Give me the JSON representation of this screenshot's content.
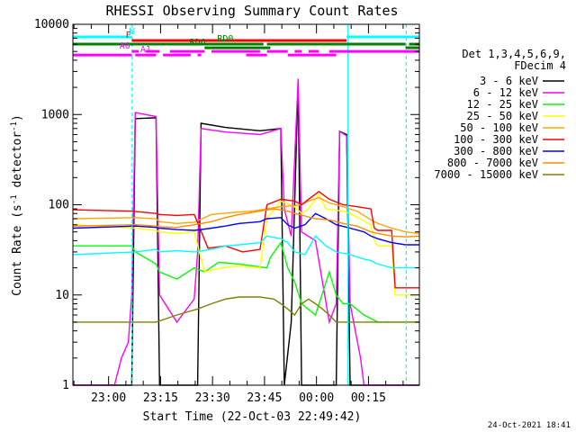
{
  "chart_data": {
    "type": "line",
    "title": "RHESSI Observing Summary Count Rates",
    "xlabel": "Start Time (22-Oct-03 22:49:42)",
    "ylabel_main": "Count Rate (s",
    "ylabel_sup1": "-1",
    "ylabel_mid": " detector",
    "ylabel_sup2": "-1",
    "ylabel_end": ")",
    "yscale": "log",
    "ylim": [
      1,
      10000
    ],
    "xlim_minutes": [
      0,
      100
    ],
    "yticks": [
      {
        "value": 1,
        "label": "1"
      },
      {
        "value": 10,
        "label": "10"
      },
      {
        "value": 100,
        "label": "100"
      },
      {
        "value": 1000,
        "label": "1000"
      },
      {
        "value": 10000,
        "label": "10000"
      }
    ],
    "xticks": [
      {
        "minute": 10.3,
        "label": "23:00"
      },
      {
        "minute": 25.3,
        "label": "23:15"
      },
      {
        "minute": 40.3,
        "label": "23:30"
      },
      {
        "minute": 55.3,
        "label": "23:45"
      },
      {
        "minute": 70.3,
        "label": "00:00"
      },
      {
        "minute": 85.3,
        "label": "00:15"
      }
    ],
    "legend_position": "right",
    "legend_header": [
      "Det 1,3,4,5,6,9,",
      "FDecim 4"
    ],
    "series": [
      {
        "name": "3 - 6 keV",
        "color": "#000000",
        "points": [
          [
            0,
            1
          ],
          [
            17,
            1
          ],
          [
            18,
            900
          ],
          [
            24,
            920
          ],
          [
            25,
            1
          ],
          [
            36,
            1
          ],
          [
            37,
            800
          ],
          [
            44,
            720
          ],
          [
            49,
            690
          ],
          [
            54,
            660
          ],
          [
            60,
            700
          ],
          [
            61,
            1
          ],
          [
            63,
            5
          ],
          [
            65,
            2300
          ],
          [
            66,
            1
          ],
          [
            76,
            1
          ],
          [
            77,
            650
          ],
          [
            79,
            600
          ],
          [
            80,
            1
          ],
          [
            100,
            1
          ]
        ]
      },
      {
        "name": "6 - 12 keV",
        "color": "#ff00ff",
        "points": [
          [
            0,
            1
          ],
          [
            12,
            1
          ],
          [
            14,
            2
          ],
          [
            16,
            3
          ],
          [
            17,
            10
          ],
          [
            18,
            1050
          ],
          [
            24,
            950
          ],
          [
            25,
            10
          ],
          [
            30,
            5
          ],
          [
            35,
            9
          ],
          [
            36,
            30
          ],
          [
            37,
            700
          ],
          [
            44,
            640
          ],
          [
            49,
            620
          ],
          [
            54,
            600
          ],
          [
            60,
            700
          ],
          [
            61,
            90
          ],
          [
            63,
            45
          ],
          [
            65,
            2500
          ],
          [
            66,
            50
          ],
          [
            70,
            40
          ],
          [
            74,
            5
          ],
          [
            76,
            8
          ],
          [
            77,
            650
          ],
          [
            79,
            580
          ],
          [
            80,
            8
          ],
          [
            83,
            2
          ],
          [
            84,
            1
          ],
          [
            100,
            1
          ]
        ]
      },
      {
        "name": "12 - 25 keV",
        "color": "#00ff00",
        "points": [
          [
            0,
            35
          ],
          [
            17,
            35
          ],
          [
            18,
            30
          ],
          [
            24,
            22
          ],
          [
            25,
            18
          ],
          [
            30,
            15
          ],
          [
            35,
            20
          ],
          [
            38,
            18
          ],
          [
            42,
            23
          ],
          [
            48,
            22
          ],
          [
            56,
            20
          ],
          [
            57,
            26
          ],
          [
            60,
            38
          ],
          [
            62,
            20
          ],
          [
            64,
            14
          ],
          [
            66,
            8
          ],
          [
            70,
            6
          ],
          [
            74,
            18
          ],
          [
            76,
            10
          ],
          [
            78,
            8
          ],
          [
            80,
            8
          ],
          [
            84,
            6
          ],
          [
            88,
            5
          ],
          [
            92,
            5
          ],
          [
            100,
            5
          ]
        ]
      },
      {
        "name": "25 - 50 keV",
        "color": "#ffff00",
        "points": [
          [
            0,
            60
          ],
          [
            18,
            55
          ],
          [
            24,
            52
          ],
          [
            25,
            50
          ],
          [
            30,
            48
          ],
          [
            35,
            50
          ],
          [
            38,
            18
          ],
          [
            43,
            20
          ],
          [
            48,
            21
          ],
          [
            54,
            20
          ],
          [
            56,
            70
          ],
          [
            60,
            110
          ],
          [
            64,
            95
          ],
          [
            66,
            80
          ],
          [
            68,
            90
          ],
          [
            71,
            130
          ],
          [
            73,
            90
          ],
          [
            78,
            85
          ],
          [
            80,
            80
          ],
          [
            86,
            60
          ],
          [
            87,
            40
          ],
          [
            88,
            35
          ],
          [
            92,
            35
          ],
          [
            93,
            10
          ],
          [
            100,
            10
          ]
        ]
      },
      {
        "name": "50 - 100 keV",
        "color": "#ffa500",
        "points": [
          [
            0,
            70
          ],
          [
            18,
            72
          ],
          [
            24,
            70
          ],
          [
            25,
            65
          ],
          [
            30,
            62
          ],
          [
            35,
            64
          ],
          [
            40,
            78
          ],
          [
            46,
            82
          ],
          [
            52,
            85
          ],
          [
            56,
            90
          ],
          [
            60,
            95
          ],
          [
            64,
            98
          ],
          [
            66,
            100
          ],
          [
            68,
            110
          ],
          [
            71,
            120
          ],
          [
            74,
            105
          ],
          [
            78,
            95
          ],
          [
            82,
            85
          ],
          [
            86,
            68
          ],
          [
            88,
            62
          ],
          [
            92,
            55
          ],
          [
            96,
            50
          ],
          [
            100,
            48
          ]
        ]
      },
      {
        "name": "100 - 300 keV",
        "color": "#ff0000",
        "points": [
          [
            0,
            88
          ],
          [
            17,
            85
          ],
          [
            24,
            80
          ],
          [
            25,
            78
          ],
          [
            30,
            76
          ],
          [
            35,
            78
          ],
          [
            39,
            33
          ],
          [
            44,
            35
          ],
          [
            49,
            30
          ],
          [
            54,
            32
          ],
          [
            56,
            100
          ],
          [
            60,
            115
          ],
          [
            64,
            110
          ],
          [
            66,
            100
          ],
          [
            68,
            115
          ],
          [
            71,
            140
          ],
          [
            74,
            115
          ],
          [
            78,
            100
          ],
          [
            82,
            95
          ],
          [
            86,
            90
          ],
          [
            87,
            55
          ],
          [
            88,
            52
          ],
          [
            92,
            52
          ],
          [
            93,
            12
          ],
          [
            100,
            12
          ]
        ]
      },
      {
        "name": "300 - 800 keV",
        "color": "#0000ff",
        "points": [
          [
            0,
            55
          ],
          [
            18,
            58
          ],
          [
            24,
            56
          ],
          [
            25,
            55
          ],
          [
            30,
            53
          ],
          [
            35,
            52
          ],
          [
            40,
            55
          ],
          [
            44,
            58
          ],
          [
            48,
            62
          ],
          [
            54,
            65
          ],
          [
            56,
            70
          ],
          [
            60,
            72
          ],
          [
            62,
            60
          ],
          [
            64,
            55
          ],
          [
            67,
            60
          ],
          [
            70,
            80
          ],
          [
            73,
            70
          ],
          [
            76,
            60
          ],
          [
            80,
            55
          ],
          [
            84,
            50
          ],
          [
            86,
            45
          ],
          [
            88,
            42
          ],
          [
            92,
            38
          ],
          [
            96,
            36
          ],
          [
            100,
            36
          ]
        ]
      },
      {
        "name": "800 - 7000 keV",
        "color": "#ff8c00",
        "points": [
          [
            0,
            58
          ],
          [
            18,
            60
          ],
          [
            24,
            58
          ],
          [
            25,
            57
          ],
          [
            30,
            56
          ],
          [
            35,
            60
          ],
          [
            40,
            65
          ],
          [
            44,
            72
          ],
          [
            48,
            78
          ],
          [
            54,
            85
          ],
          [
            58,
            90
          ],
          [
            62,
            85
          ],
          [
            64,
            80
          ],
          [
            67,
            75
          ],
          [
            70,
            70
          ],
          [
            74,
            68
          ],
          [
            78,
            62
          ],
          [
            82,
            58
          ],
          [
            86,
            50
          ],
          [
            88,
            48
          ],
          [
            92,
            45
          ],
          [
            96,
            44
          ],
          [
            100,
            45
          ]
        ]
      },
      {
        "name": "7000 - 15000 keV",
        "color": "#808000",
        "points": [
          [
            0,
            5
          ],
          [
            10,
            5
          ],
          [
            16,
            5
          ],
          [
            18,
            5
          ],
          [
            24,
            5
          ],
          [
            30,
            6
          ],
          [
            36,
            7
          ],
          [
            40,
            8
          ],
          [
            44,
            9
          ],
          [
            48,
            9.5
          ],
          [
            54,
            9.5
          ],
          [
            58,
            9
          ],
          [
            60,
            8
          ],
          [
            62,
            7
          ],
          [
            64,
            6
          ],
          [
            66,
            8
          ],
          [
            68,
            9
          ],
          [
            70,
            8
          ],
          [
            72,
            7
          ],
          [
            74,
            6
          ],
          [
            76,
            5
          ],
          [
            80,
            5
          ],
          [
            84,
            5
          ],
          [
            88,
            5
          ],
          [
            92,
            5
          ],
          [
            96,
            5
          ],
          [
            100,
            5
          ]
        ]
      },
      {
        "name": "",
        "color": "#00ffff",
        "points": [
          [
            0,
            28
          ],
          [
            18,
            30
          ],
          [
            24,
            32
          ],
          [
            25,
            30
          ],
          [
            30,
            31
          ],
          [
            35,
            30
          ],
          [
            40,
            32
          ],
          [
            44,
            35
          ],
          [
            48,
            36
          ],
          [
            54,
            38
          ],
          [
            56,
            45
          ],
          [
            60,
            42
          ],
          [
            62,
            38
          ],
          [
            64,
            30
          ],
          [
            67,
            28
          ],
          [
            70,
            45
          ],
          [
            73,
            35
          ],
          [
            76,
            30
          ],
          [
            80,
            28
          ],
          [
            84,
            25
          ],
          [
            86,
            24
          ],
          [
            88,
            22
          ],
          [
            92,
            20
          ],
          [
            96,
            20
          ],
          [
            100,
            20
          ]
        ]
      }
    ],
    "flags": [
      {
        "label": "N",
        "color": "#00ffff",
        "label_minute": 17,
        "level_frac": 0.965,
        "segments": [
          [
            0,
            17
          ],
          [
            79,
            100
          ]
        ]
      },
      {
        "label": "F",
        "color": "#ff0000",
        "label_minute": 16,
        "level_frac": 0.955,
        "segments": [
          [
            17,
            79
          ]
        ]
      },
      {
        "label": "RD0",
        "color": "#008000",
        "label_minute": 44,
        "level_frac": 0.945,
        "segments": [
          [
            0,
            55
          ],
          [
            56,
            96
          ],
          [
            97,
            100
          ]
        ]
      },
      {
        "label": "RD6",
        "color": "#008000",
        "label_minute": 36,
        "level_frac": 0.935,
        "segments": [
          [
            38,
            57
          ],
          [
            96,
            100
          ]
        ]
      },
      {
        "label": "A0",
        "color": "#ff00ff",
        "label_minute": 15,
        "level_frac": 0.925,
        "segments": [
          [
            17,
            19
          ],
          [
            21,
            25
          ],
          [
            28,
            38
          ],
          [
            40,
            54
          ],
          [
            56,
            62
          ],
          [
            64,
            66
          ],
          [
            68,
            71
          ],
          [
            74,
            100
          ]
        ]
      },
      {
        "label": "A1",
        "color": "#ff00ff",
        "label_minute": 21,
        "level_frac": 0.915,
        "segments": [
          [
            0,
            17
          ],
          [
            18,
            24
          ],
          [
            26,
            34
          ],
          [
            36,
            37
          ],
          [
            50,
            56
          ],
          [
            62,
            76
          ]
        ]
      }
    ],
    "vlines": [
      {
        "minute": 17.1,
        "color": "#00ffff",
        "dashed": true
      },
      {
        "minute": 79.4,
        "color": "#00ffff",
        "dashed": false
      },
      {
        "minute": 96.2,
        "color": "#00ffff",
        "dashed": true
      }
    ]
  },
  "footer": {
    "timestamp": "24-Oct-2021 18:41"
  }
}
